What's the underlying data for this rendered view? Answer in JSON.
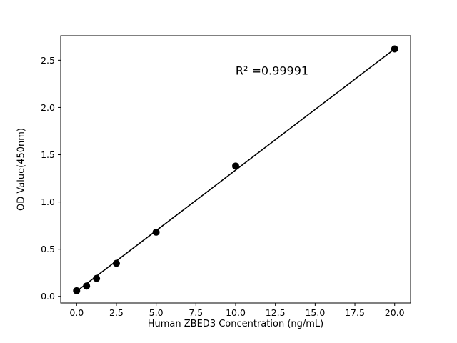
{
  "chart_data": {
    "type": "scatter",
    "title": "",
    "xlabel": "Human ZBED3 Concentration (ng/mL)",
    "ylabel": "OD Value(450nm)",
    "annotation": "R² =0.99991",
    "x": [
      0,
      0.625,
      1.25,
      2.5,
      5,
      10,
      20
    ],
    "y": [
      0.06,
      0.11,
      0.19,
      0.35,
      0.68,
      1.38,
      2.62
    ],
    "fit_line": {
      "x": [
        0,
        20
      ],
      "y": [
        0.055,
        2.62
      ]
    },
    "xticks": [
      0.0,
      2.5,
      5.0,
      7.5,
      10.0,
      12.5,
      15.0,
      17.5,
      20.0
    ],
    "yticks": [
      0.0,
      0.5,
      1.0,
      1.5,
      2.0,
      2.5
    ],
    "xlim": [
      -1.0,
      21.0
    ],
    "ylim": [
      -0.07,
      2.76
    ],
    "grid": false,
    "legend_position": "none",
    "marker_color": "#000000",
    "line_color": "#000000",
    "background_color": "#ffffff"
  }
}
